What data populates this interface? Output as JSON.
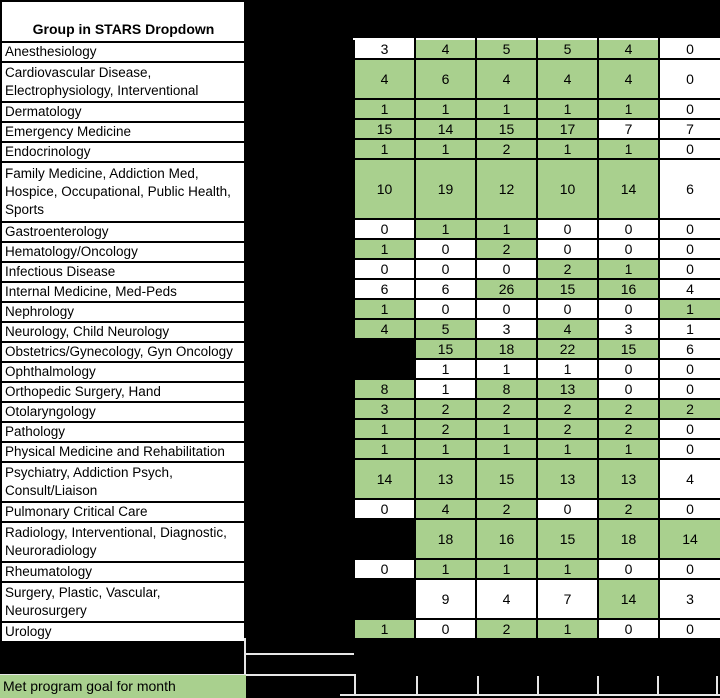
{
  "header": {
    "group_column_title": "Group in STARS Dropdown"
  },
  "legend": {
    "label": "Met program goal for month"
  },
  "colors": {
    "met_goal_green": "#A9D08E",
    "not_met_white": "#FFFFFF",
    "blank_black": "#000000"
  },
  "fill_codes": {
    "g": "met program goal for month (green)",
    "w": "goal not met (white)",
    "b": "blank cell (black)"
  },
  "table": {
    "data_columns": 6,
    "rows": [
      {
        "group": "Anesthesiology",
        "lines": 1,
        "values": [
          "3",
          "4",
          "5",
          "5",
          "4",
          "0"
        ],
        "fills": [
          "w",
          "g",
          "g",
          "g",
          "g",
          "w"
        ]
      },
      {
        "group": "Cardiovascular Disease, Electrophysiology, Interventional",
        "lines": 2,
        "values": [
          "4",
          "6",
          "4",
          "4",
          "4",
          "0"
        ],
        "fills": [
          "g",
          "g",
          "g",
          "g",
          "g",
          "w"
        ]
      },
      {
        "group": "Dermatology",
        "lines": 1,
        "values": [
          "1",
          "1",
          "1",
          "1",
          "1",
          "0"
        ],
        "fills": [
          "g",
          "g",
          "g",
          "g",
          "g",
          "w"
        ]
      },
      {
        "group": "Emergency Medicine",
        "lines": 1,
        "values": [
          "15",
          "14",
          "15",
          "17",
          "7",
          "7"
        ],
        "fills": [
          "g",
          "g",
          "g",
          "g",
          "w",
          "w"
        ]
      },
      {
        "group": "Endocrinology",
        "lines": 1,
        "values": [
          "1",
          "1",
          "2",
          "1",
          "1",
          "0"
        ],
        "fills": [
          "g",
          "g",
          "g",
          "g",
          "g",
          "w"
        ]
      },
      {
        "group": "Family Medicine, Addiction Med, Hospice, Occupational, Public Health, Sports",
        "lines": 3,
        "values": [
          "10",
          "19",
          "12",
          "10",
          "14",
          "6"
        ],
        "fills": [
          "g",
          "g",
          "g",
          "g",
          "g",
          "w"
        ]
      },
      {
        "group": "Gastroenterology",
        "lines": 1,
        "values": [
          "0",
          "1",
          "1",
          "0",
          "0",
          "0"
        ],
        "fills": [
          "w",
          "g",
          "g",
          "w",
          "w",
          "w"
        ]
      },
      {
        "group": "Hematology/Oncology",
        "lines": 1,
        "values": [
          "1",
          "0",
          "2",
          "0",
          "0",
          "0"
        ],
        "fills": [
          "g",
          "w",
          "g",
          "w",
          "w",
          "w"
        ]
      },
      {
        "group": "Infectious Disease",
        "lines": 1,
        "values": [
          "0",
          "0",
          "0",
          "2",
          "1",
          "0"
        ],
        "fills": [
          "w",
          "w",
          "w",
          "g",
          "g",
          "w"
        ]
      },
      {
        "group": "Internal Medicine, Med-Peds",
        "lines": 1,
        "values": [
          "6",
          "6",
          "26",
          "15",
          "16",
          "4"
        ],
        "fills": [
          "w",
          "w",
          "g",
          "g",
          "g",
          "w"
        ]
      },
      {
        "group": "Nephrology",
        "lines": 1,
        "values": [
          "1",
          "0",
          "0",
          "0",
          "0",
          "1"
        ],
        "fills": [
          "g",
          "w",
          "w",
          "w",
          "w",
          "g"
        ]
      },
      {
        "group": "Neurology, Child Neurology",
        "lines": 1,
        "values": [
          "4",
          "5",
          "3",
          "4",
          "3",
          "1"
        ],
        "fills": [
          "g",
          "g",
          "w",
          "g",
          "w",
          "w"
        ]
      },
      {
        "group": "Obstetrics/Gynecology, Gyn Oncology",
        "lines": 1,
        "values": [
          "",
          "15",
          "18",
          "22",
          "15",
          "6"
        ],
        "fills": [
          "b",
          "g",
          "g",
          "g",
          "g",
          "w"
        ]
      },
      {
        "group": "Ophthalmology",
        "lines": 1,
        "values": [
          "",
          "1",
          "1",
          "1",
          "0",
          "0"
        ],
        "fills": [
          "b",
          "w",
          "w",
          "w",
          "w",
          "w"
        ]
      },
      {
        "group": "Orthopedic Surgery, Hand",
        "lines": 1,
        "values": [
          "8",
          "1",
          "8",
          "13",
          "0",
          "0"
        ],
        "fills": [
          "g",
          "w",
          "g",
          "g",
          "w",
          "w"
        ]
      },
      {
        "group": "Otolaryngology",
        "lines": 1,
        "values": [
          "3",
          "2",
          "2",
          "2",
          "2",
          "2"
        ],
        "fills": [
          "g",
          "g",
          "g",
          "g",
          "g",
          "g"
        ]
      },
      {
        "group": "Pathology",
        "lines": 1,
        "values": [
          "1",
          "2",
          "1",
          "2",
          "2",
          "0"
        ],
        "fills": [
          "g",
          "g",
          "g",
          "g",
          "g",
          "w"
        ]
      },
      {
        "group": "Physical Medicine and Rehabilitation",
        "lines": 1,
        "values": [
          "1",
          "1",
          "1",
          "1",
          "1",
          "0"
        ],
        "fills": [
          "g",
          "g",
          "g",
          "g",
          "g",
          "w"
        ]
      },
      {
        "group": "Psychiatry, Addiction Psych, Consult/Liaison",
        "lines": 2,
        "values": [
          "14",
          "13",
          "15",
          "13",
          "13",
          "4"
        ],
        "fills": [
          "g",
          "g",
          "g",
          "g",
          "g",
          "w"
        ]
      },
      {
        "group": "Pulmonary Critical Care",
        "lines": 1,
        "values": [
          "0",
          "4",
          "2",
          "0",
          "2",
          "0"
        ],
        "fills": [
          "w",
          "g",
          "g",
          "w",
          "g",
          "w"
        ]
      },
      {
        "group": "Radiology, Interventional, Diagnostic, Neuroradiology",
        "lines": 2,
        "values": [
          "",
          "18",
          "16",
          "15",
          "18",
          "14"
        ],
        "fills": [
          "b",
          "g",
          "g",
          "g",
          "g",
          "g"
        ]
      },
      {
        "group": "Rheumatology",
        "lines": 1,
        "values": [
          "0",
          "1",
          "1",
          "1",
          "0",
          "0"
        ],
        "fills": [
          "w",
          "g",
          "g",
          "g",
          "w",
          "w"
        ]
      },
      {
        "group": "Surgery, Plastic, Vascular, Neurosurgery",
        "lines": 2,
        "values": [
          "",
          "9",
          "4",
          "7",
          "14",
          "3"
        ],
        "fills": [
          "b",
          "w",
          "w",
          "w",
          "g",
          "w"
        ]
      },
      {
        "group": "Urology",
        "lines": 1,
        "values": [
          "1",
          "0",
          "2",
          "1",
          "0",
          "0"
        ],
        "fills": [
          "g",
          "w",
          "g",
          "g",
          "w",
          "w"
        ]
      }
    ]
  }
}
